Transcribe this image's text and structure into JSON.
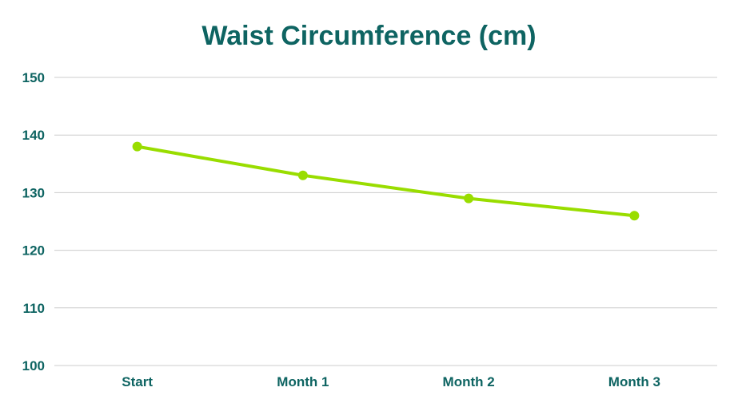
{
  "chart_data": {
    "type": "line",
    "title": "Waist Circumference (cm)",
    "xlabel": "",
    "ylabel": "",
    "categories": [
      "Start",
      "Month 1",
      "Month 2",
      "Month 3"
    ],
    "series": [
      {
        "values": [
          138,
          133,
          129,
          126
        ]
      }
    ],
    "ylim": [
      100,
      150
    ],
    "yticks": [
      "100",
      "110",
      "120",
      "130",
      "140",
      "150"
    ],
    "grid": true,
    "legend": "none",
    "colors": {
      "line": "#99dd00",
      "text": "#0e6462",
      "grid": "#cccccc"
    }
  }
}
